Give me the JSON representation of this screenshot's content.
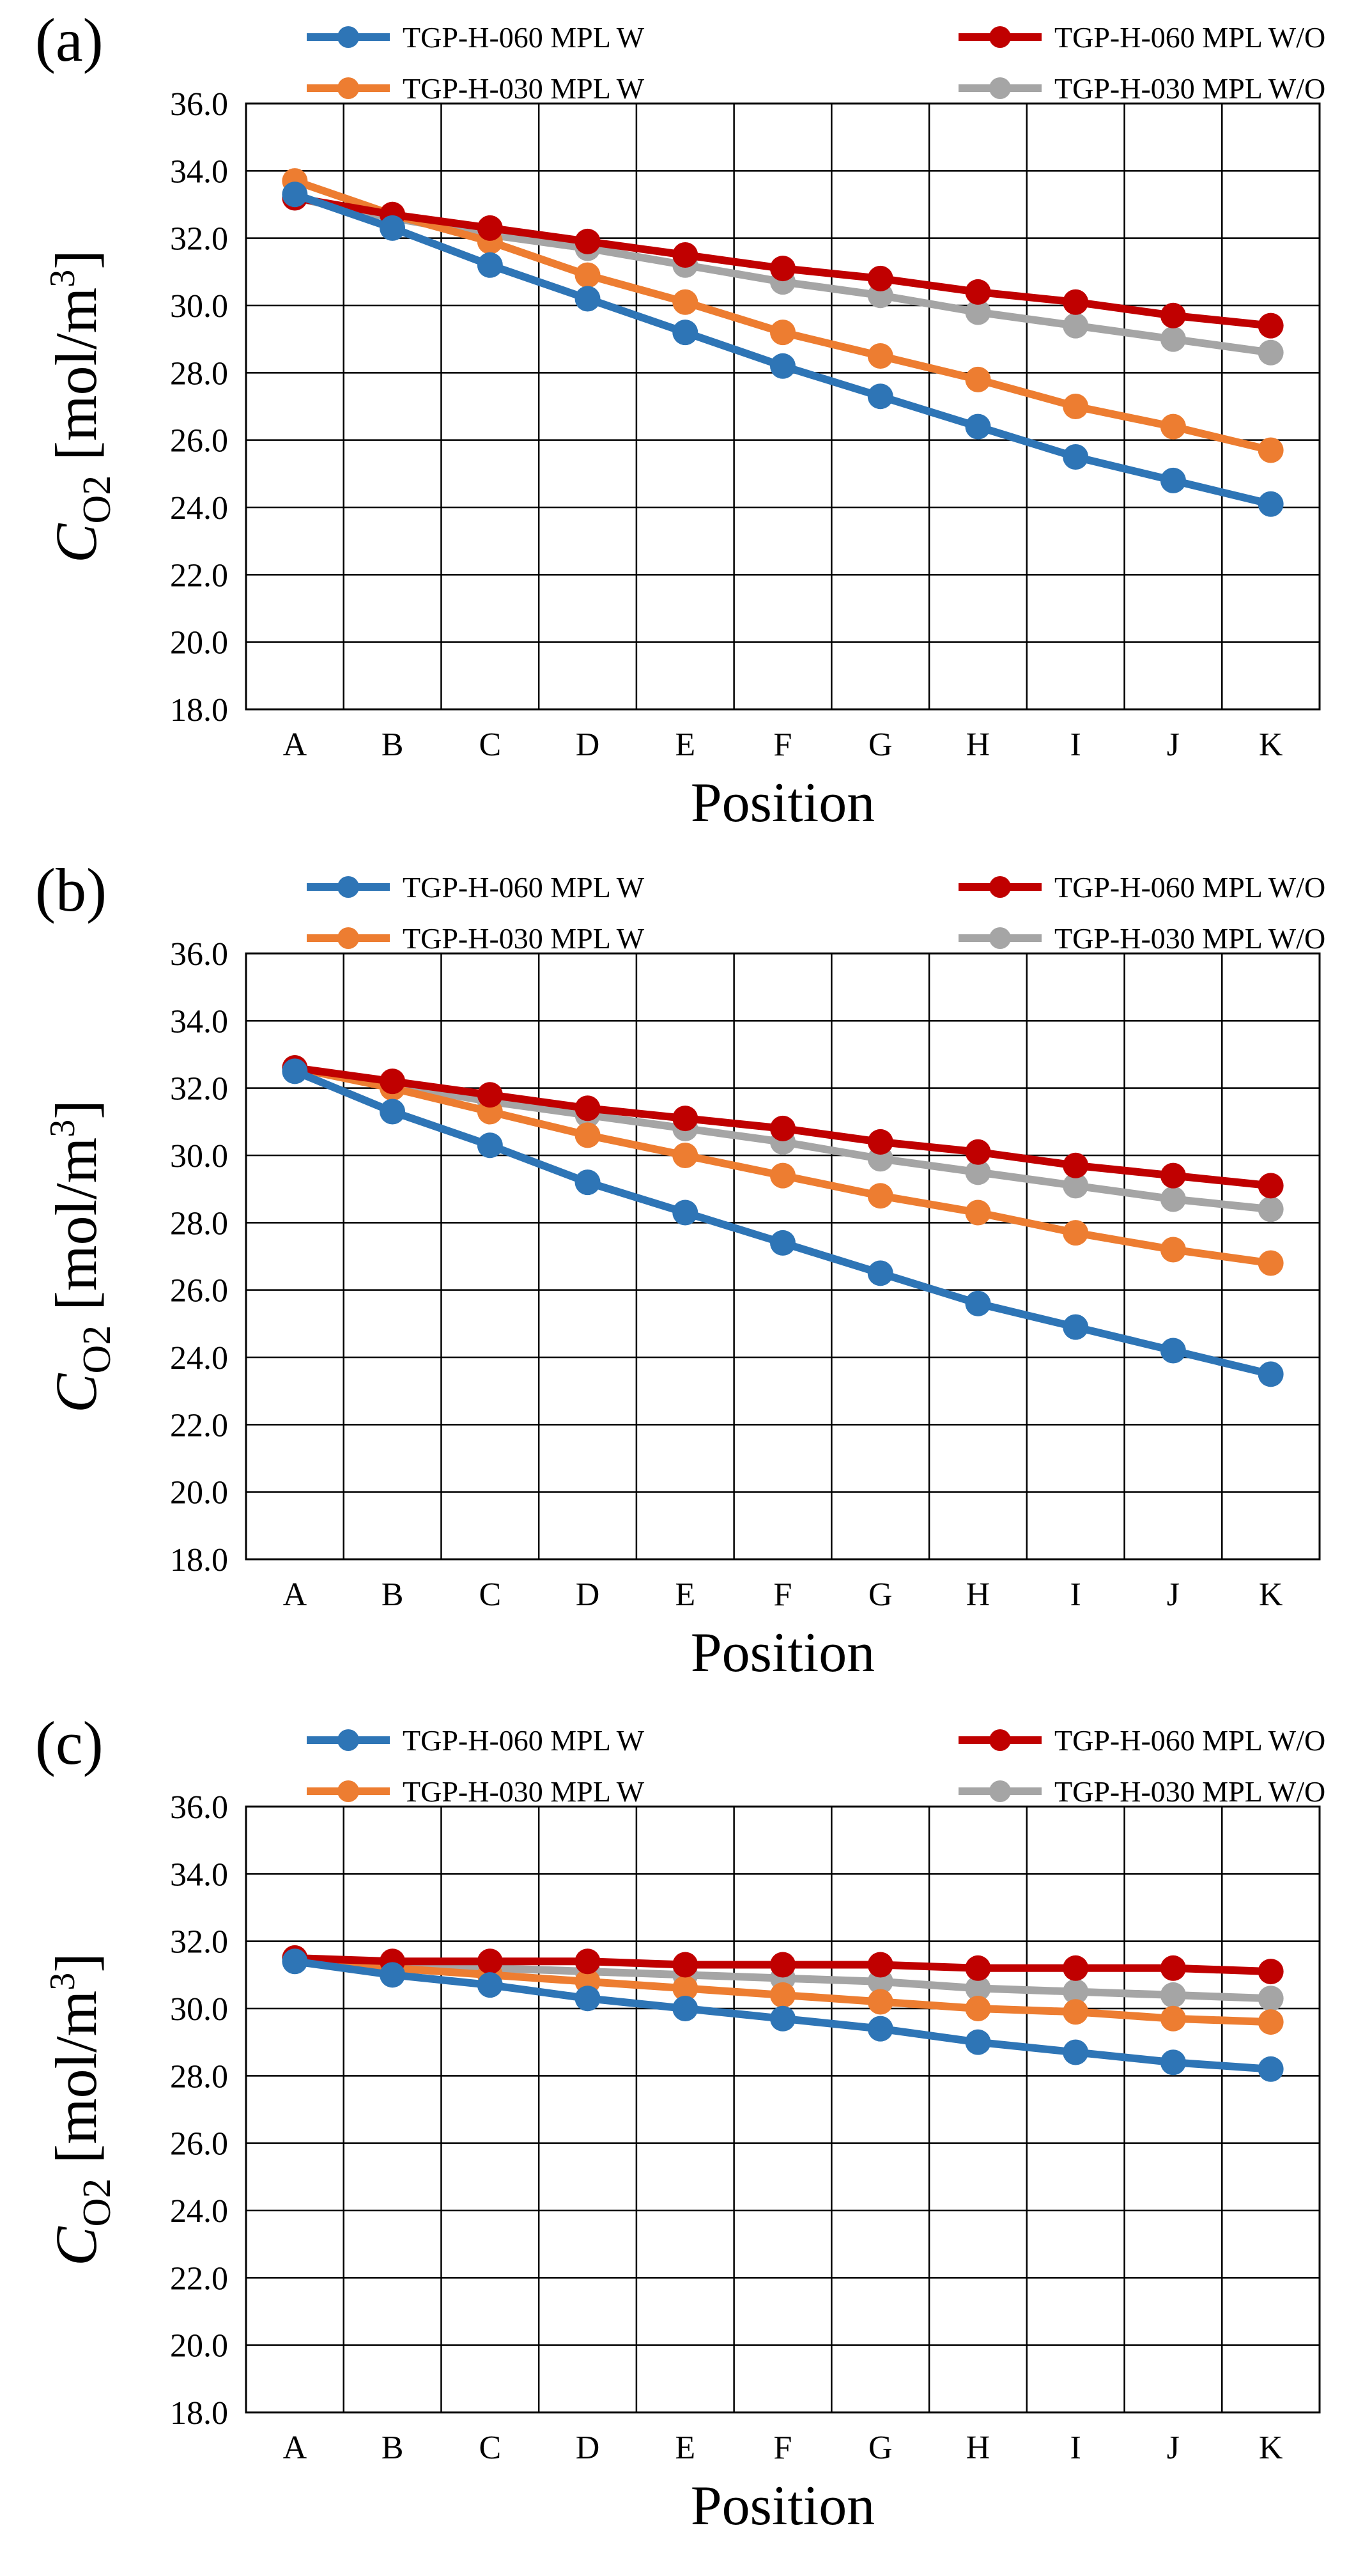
{
  "chart_data": [
    {
      "type": "line",
      "panel_label": "(a)",
      "categories": [
        "A",
        "B",
        "C",
        "D",
        "E",
        "F",
        "G",
        "H",
        "I",
        "J",
        "K"
      ],
      "xlabel": "Position",
      "ylabel": {
        "symbol": "C",
        "subscript": "O2",
        "unit_open": " [mol/m",
        "unit_sup": "3",
        "unit_close": "]"
      },
      "ylim": [
        18.0,
        36.0
      ],
      "yticks": [
        "18.0",
        "20.0",
        "22.0",
        "24.0",
        "26.0",
        "28.0",
        "30.0",
        "32.0",
        "34.0",
        "36.0"
      ],
      "grid": true,
      "series": [
        {
          "name": "TGP-H-060 MPL W",
          "color": "#2E75B6",
          "values": [
            33.3,
            32.3,
            31.2,
            30.2,
            29.2,
            28.2,
            27.3,
            26.4,
            25.5,
            24.8,
            24.1
          ]
        },
        {
          "name": "TGP-H-060 MPL W/O",
          "color": "#C00000",
          "values": [
            33.2,
            32.7,
            32.3,
            31.9,
            31.5,
            31.1,
            30.8,
            30.4,
            30.1,
            29.7,
            29.4
          ]
        },
        {
          "name": "TGP-H-030 MPL W",
          "color": "#ED7D31",
          "values": [
            33.7,
            32.7,
            31.9,
            30.9,
            30.1,
            29.2,
            28.5,
            27.8,
            27.0,
            26.4,
            25.7
          ]
        },
        {
          "name": "TGP-H-030 MPL W/O",
          "color": "#A5A5A5",
          "values": [
            33.2,
            32.6,
            32.1,
            31.7,
            31.2,
            30.7,
            30.3,
            29.8,
            29.4,
            29.0,
            28.6
          ]
        }
      ]
    },
    {
      "type": "line",
      "panel_label": "(b)",
      "categories": [
        "A",
        "B",
        "C",
        "D",
        "E",
        "F",
        "G",
        "H",
        "I",
        "J",
        "K"
      ],
      "xlabel": "Position",
      "ylabel": {
        "symbol": "C",
        "subscript": "O2",
        "unit_open": " [mol/m",
        "unit_sup": "3",
        "unit_close": "]"
      },
      "ylim": [
        18.0,
        36.0
      ],
      "yticks": [
        "18.0",
        "20.0",
        "22.0",
        "24.0",
        "26.0",
        "28.0",
        "30.0",
        "32.0",
        "34.0",
        "36.0"
      ],
      "grid": true,
      "series": [
        {
          "name": "TGP-H-060 MPL W",
          "color": "#2E75B6",
          "values": [
            32.5,
            31.3,
            30.3,
            29.2,
            28.3,
            27.4,
            26.5,
            25.6,
            24.9,
            24.2,
            23.5
          ]
        },
        {
          "name": "TGP-H-060 MPL W/O",
          "color": "#C00000",
          "values": [
            32.6,
            32.2,
            31.8,
            31.4,
            31.1,
            30.8,
            30.4,
            30.1,
            29.7,
            29.4,
            29.1
          ]
        },
        {
          "name": "TGP-H-030 MPL W",
          "color": "#ED7D31",
          "values": [
            32.6,
            32.0,
            31.3,
            30.6,
            30.0,
            29.4,
            28.8,
            28.3,
            27.7,
            27.2,
            26.8
          ]
        },
        {
          "name": "TGP-H-030 MPL W/O",
          "color": "#A5A5A5",
          "values": [
            32.6,
            32.1,
            31.6,
            31.2,
            30.8,
            30.4,
            29.9,
            29.5,
            29.1,
            28.7,
            28.4
          ]
        }
      ]
    },
    {
      "type": "line",
      "panel_label": "(c)",
      "categories": [
        "A",
        "B",
        "C",
        "D",
        "E",
        "F",
        "G",
        "H",
        "I",
        "J",
        "K"
      ],
      "xlabel": "Position",
      "ylabel": {
        "symbol": "C",
        "subscript": "O2",
        "unit_open": " [mol/m",
        "unit_sup": "3",
        "unit_close": "]"
      },
      "ylim": [
        18.0,
        36.0
      ],
      "yticks": [
        "18.0",
        "20.0",
        "22.0",
        "24.0",
        "26.0",
        "28.0",
        "30.0",
        "32.0",
        "34.0",
        "36.0"
      ],
      "grid": true,
      "series": [
        {
          "name": "TGP-H-060 MPL W",
          "color": "#2E75B6",
          "values": [
            31.4,
            31.0,
            30.7,
            30.3,
            30.0,
            29.7,
            29.4,
            29.0,
            28.7,
            28.4,
            28.2
          ]
        },
        {
          "name": "TGP-H-060 MPL W/O",
          "color": "#C00000",
          "values": [
            31.5,
            31.4,
            31.4,
            31.4,
            31.3,
            31.3,
            31.3,
            31.2,
            31.2,
            31.2,
            31.1
          ]
        },
        {
          "name": "TGP-H-030 MPL W",
          "color": "#ED7D31",
          "values": [
            31.5,
            31.2,
            31.0,
            30.8,
            30.6,
            30.4,
            30.2,
            30.0,
            29.9,
            29.7,
            29.6
          ]
        },
        {
          "name": "TGP-H-030 MPL W/O",
          "color": "#A5A5A5",
          "values": [
            31.5,
            31.3,
            31.2,
            31.1,
            31.0,
            30.9,
            30.8,
            30.6,
            30.5,
            30.4,
            30.3
          ]
        }
      ]
    }
  ]
}
